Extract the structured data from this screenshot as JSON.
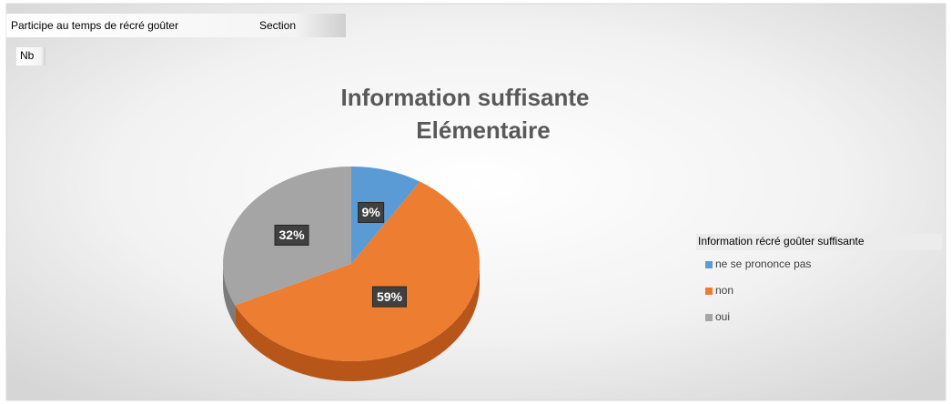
{
  "chart_data": {
    "type": "pie",
    "title": [
      "Information suffisante",
      "Elémentaire"
    ],
    "filter_fields": [
      "Participe au temps de récré goûter",
      "Section"
    ],
    "value_field": "Nb",
    "legend_title": "Information récré goûter suffisante",
    "categories": [
      "ne se prononce pas",
      "non",
      "oui"
    ],
    "values": [
      9,
      59,
      32
    ],
    "value_labels": [
      "9%",
      "59%",
      "32%"
    ],
    "colors": [
      "#5b9bd5",
      "#ed7d31",
      "#a5a5a5"
    ],
    "side_colors": [
      "#3f74a6",
      "#b8561a",
      "#7c7c7c"
    ]
  }
}
